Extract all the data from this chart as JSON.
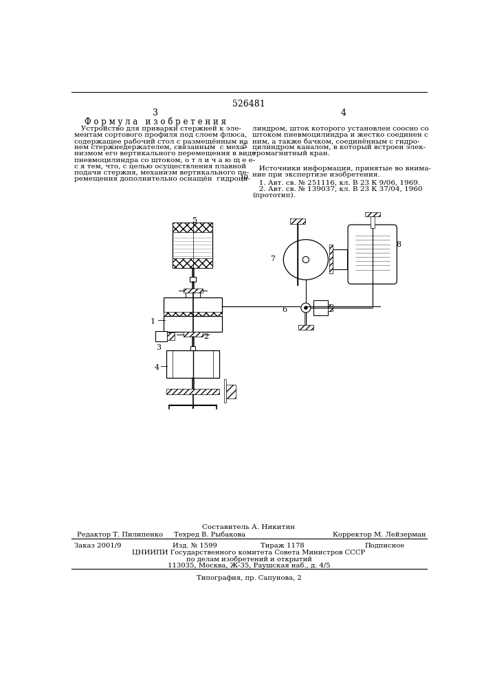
{
  "patent_number": "526481",
  "page_left": "3",
  "page_right": "4",
  "title_formula": "Ф о р м у л а   и з о б р е т е н и я",
  "composer": "Составитель А. Никитин",
  "editor": "Редактор Т. Пилипенко",
  "techred": "Техред В. Рыбакова",
  "corrector": "Корректор М. Лейзерман",
  "order": "Заказ 2001/9",
  "edition": "Изд. № 1599",
  "circulation": "Тираж 1178",
  "subscription": "Подписное",
  "org_line1": "ЦНИИПИ Государственного комитета Совета Министров СССР",
  "org_line2": "по делам изобретений и открытий",
  "org_line3": "113035, Москва, Ж-35, Раушская наб., д. 4/5",
  "typography": "Типография, пр. Сапунова, 2",
  "bg_color": "#ffffff",
  "text_color": "#000000"
}
